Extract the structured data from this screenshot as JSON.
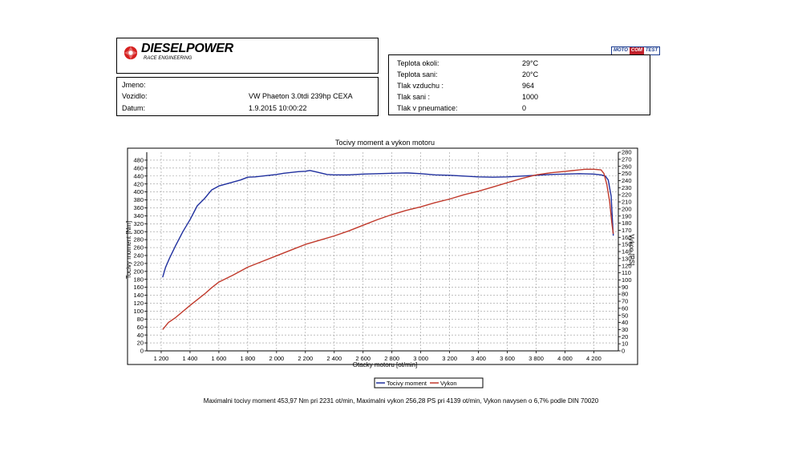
{
  "header": {
    "brand": "DIESELPOWER",
    "brand_sub": "RACE ENGINEERING",
    "badge": [
      "MOTO",
      "COM",
      "TEST"
    ]
  },
  "vehicle": {
    "rows": [
      {
        "label": "Jmeno:",
        "value": ""
      },
      {
        "label": "Vozidlo:",
        "value": "VW Phaeton 3.0tdi 239hp CEXA"
      },
      {
        "label": "Datum:",
        "value": "1.9.2015 10:00:22"
      }
    ]
  },
  "conditions": {
    "rows": [
      {
        "label": "Teplota okoli:",
        "value": "29°C"
      },
      {
        "label": "Teplota sani:",
        "value": "20°C"
      },
      {
        "label": "Tlak vzduchu :",
        "value": "964"
      },
      {
        "label": "Tlak sani :",
        "value": "1000"
      },
      {
        "label": "Tlak v pneumatice:",
        "value": "0"
      }
    ]
  },
  "footer": {
    "text": "Maximalni tocivy moment 453,97 Nm pri 2231 ot/min,  Maximalni vykon 256,28 PS pri 4139 ot/min,  Vykon navysen o 6,7% podle DIN 70020"
  },
  "colors": {
    "torque": "#1f2f9e",
    "power": "#c0392b",
    "grid": "#9a9a9a"
  },
  "chart_data": {
    "type": "line",
    "title": "Tocivy moment a vykon motoru",
    "xlabel": "Otacky motoru [ot/min]",
    "ylabel": "Tocivy moment [Nm]",
    "y2label": "Vykon [PS]",
    "xlim": [
      1100,
      4370
    ],
    "ylim": [
      0,
      500
    ],
    "y2lim": [
      0,
      280
    ],
    "xticks": [
      1200,
      1400,
      1600,
      1800,
      2000,
      2200,
      2400,
      2600,
      2800,
      3000,
      3200,
      3400,
      3600,
      3800,
      4000,
      4200
    ],
    "xtick_labels": [
      "1 200",
      "1 400",
      "1 600",
      "1 800",
      "2 000",
      "2 200",
      "2 400",
      "2 600",
      "2 800",
      "3 000",
      "3 200",
      "3 400",
      "3 600",
      "3 800",
      "4 000",
      "4 200"
    ],
    "yticks": [
      0,
      20,
      40,
      60,
      80,
      100,
      120,
      140,
      160,
      180,
      200,
      220,
      240,
      260,
      280,
      300,
      320,
      340,
      360,
      380,
      400,
      420,
      440,
      460,
      480
    ],
    "y2ticks": [
      0,
      10,
      20,
      30,
      40,
      50,
      60,
      70,
      80,
      90,
      100,
      110,
      120,
      130,
      140,
      150,
      160,
      170,
      180,
      190,
      200,
      210,
      220,
      230,
      240,
      250,
      260,
      270,
      280
    ],
    "grid": true,
    "legend_position": "bottom",
    "series": [
      {
        "name": "Tocivy moment",
        "axis": "left",
        "x": [
          1210,
          1230,
          1260,
          1300,
          1350,
          1400,
          1450,
          1500,
          1550,
          1600,
          1650,
          1700,
          1750,
          1800,
          1850,
          1900,
          1950,
          2000,
          2050,
          2100,
          2150,
          2200,
          2231,
          2280,
          2350,
          2400,
          2500,
          2600,
          2700,
          2800,
          2900,
          3000,
          3100,
          3200,
          3300,
          3400,
          3500,
          3600,
          3700,
          3800,
          3900,
          4000,
          4100,
          4200,
          4250,
          4280,
          4300,
          4320,
          4335
        ],
        "y": [
          185,
          210,
          235,
          265,
          300,
          330,
          365,
          383,
          405,
          415,
          420,
          425,
          430,
          437,
          438,
          440,
          442,
          444,
          447,
          449,
          451,
          452,
          454,
          450,
          444,
          443,
          443,
          445,
          446,
          447,
          448,
          446,
          443,
          442,
          440,
          438,
          437,
          438,
          440,
          442,
          444,
          445,
          446,
          445,
          443,
          440,
          430,
          390,
          290
        ]
      },
      {
        "name": "Vykon",
        "axis": "right",
        "x": [
          1210,
          1250,
          1300,
          1400,
          1500,
          1550,
          1600,
          1700,
          1800,
          1900,
          2000,
          2100,
          2200,
          2231,
          2300,
          2400,
          2500,
          2600,
          2700,
          2800,
          2900,
          3000,
          3100,
          3200,
          3300,
          3400,
          3500,
          3600,
          3700,
          3800,
          3900,
          4000,
          4050,
          4100,
          4139,
          4200,
          4250,
          4270,
          4290,
          4310,
          4325,
          4335
        ],
        "y": [
          30,
          40,
          47,
          64,
          80,
          89,
          97,
          107,
          118,
          126,
          134,
          142,
          150,
          152,
          156,
          162,
          169,
          177,
          185,
          192,
          198,
          203,
          209,
          214,
          220,
          225,
          231,
          237,
          243,
          248,
          251,
          253,
          254,
          255,
          256,
          256,
          255,
          250,
          235,
          210,
          180,
          165
        ]
      }
    ]
  }
}
